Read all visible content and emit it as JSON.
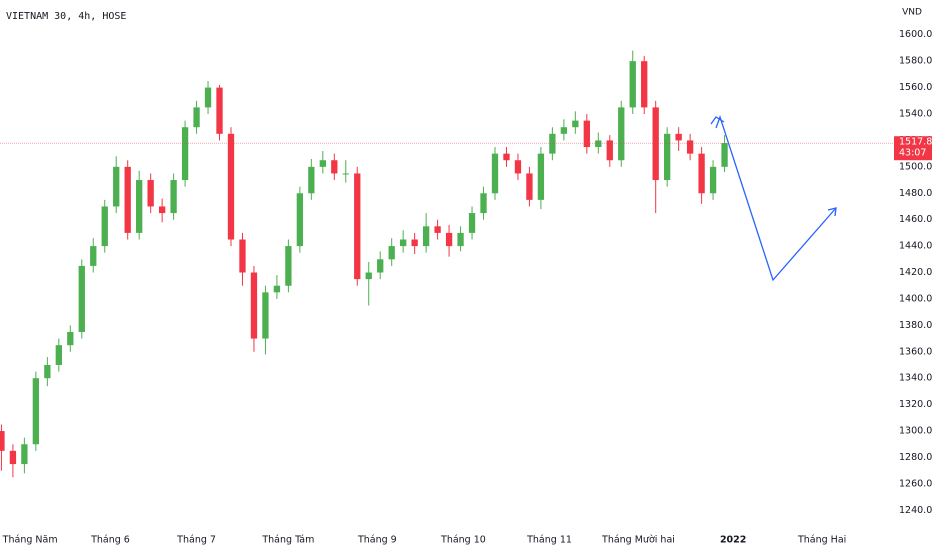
{
  "chart_data": {
    "type": "candlestick",
    "title": "VIETNAM 30, 4h, HOSE",
    "currency": "VND",
    "x": [
      -10,
      -6,
      -2,
      2,
      6,
      10,
      14,
      18,
      22,
      26,
      30,
      34,
      38,
      42,
      46,
      50,
      54,
      58,
      62,
      66,
      70,
      74,
      78,
      82,
      86,
      90,
      94,
      98,
      102,
      106,
      110,
      114,
      118,
      122,
      126,
      130,
      134,
      138,
      142,
      146,
      150,
      154,
      158,
      162,
      166,
      170,
      174,
      178,
      182,
      186,
      190,
      194,
      198,
      202,
      206,
      210,
      214,
      218,
      222,
      226,
      230,
      234,
      238,
      242
    ],
    "open": [
      1300,
      1285,
      1275,
      1290,
      1340,
      1350,
      1365,
      1375,
      1425,
      1440,
      1470,
      1500,
      1450,
      1490,
      1470,
      1465,
      1490,
      1530,
      1545,
      1560,
      1525,
      1445,
      1420,
      1370,
      1405,
      1410,
      1440,
      1480,
      1500,
      1505,
      1495,
      1495,
      1415,
      1420,
      1430,
      1440,
      1445,
      1440,
      1455,
      1450,
      1440,
      1450,
      1465,
      1480,
      1510,
      1505,
      1495,
      1475,
      1510,
      1525,
      1530,
      1535,
      1515,
      1520,
      1505,
      1545,
      1580,
      1545,
      1490,
      1525,
      1520,
      1510,
      1480,
      1500
    ],
    "high": [
      1305,
      1290,
      1295,
      1345,
      1356,
      1370,
      1380,
      1430,
      1446,
      1475,
      1508,
      1505,
      1497,
      1495,
      1476,
      1495,
      1535,
      1550,
      1565,
      1562,
      1530,
      1450,
      1425,
      1410,
      1418,
      1445,
      1485,
      1506,
      1512,
      1510,
      1505,
      1500,
      1428,
      1436,
      1446,
      1452,
      1450,
      1465,
      1460,
      1456,
      1455,
      1470,
      1485,
      1515,
      1515,
      1510,
      1500,
      1515,
      1530,
      1536,
      1542,
      1540,
      1526,
      1524,
      1550,
      1588,
      1584,
      1550,
      1530,
      1530,
      1525,
      1515,
      1505,
      1524
    ],
    "low": [
      1270,
      1265,
      1268,
      1285,
      1334,
      1345,
      1360,
      1370,
      1420,
      1435,
      1465,
      1445,
      1445,
      1465,
      1458,
      1460,
      1485,
      1525,
      1540,
      1520,
      1440,
      1410,
      1360,
      1358,
      1400,
      1405,
      1435,
      1475,
      1495,
      1490,
      1488,
      1410,
      1395,
      1415,
      1425,
      1435,
      1434,
      1435,
      1445,
      1432,
      1436,
      1445,
      1460,
      1475,
      1500,
      1490,
      1470,
      1468,
      1505,
      1520,
      1525,
      1510,
      1510,
      1500,
      1500,
      1540,
      1540,
      1465,
      1485,
      1512,
      1505,
      1472,
      1475,
      1496
    ],
    "close": [
      1285,
      1275,
      1290,
      1340,
      1350,
      1365,
      1375,
      1425,
      1440,
      1470,
      1500,
      1450,
      1490,
      1470,
      1465,
      1490,
      1530,
      1545,
      1560,
      1525,
      1445,
      1420,
      1370,
      1405,
      1410,
      1440,
      1480,
      1500,
      1505,
      1495,
      1495,
      1415,
      1420,
      1430,
      1440,
      1445,
      1440,
      1455,
      1450,
      1440,
      1450,
      1465,
      1480,
      1510,
      1505,
      1495,
      1475,
      1510,
      1525,
      1530,
      1535,
      1515,
      1520,
      1505,
      1545,
      1580,
      1545,
      1490,
      1525,
      1520,
      1510,
      1480,
      1500,
      1518
    ],
    "up_color": "#4caf50",
    "down_color": "#f23645",
    "last_price": 1517.89,
    "countdown": "43:07",
    "xlim": [
      -10.5,
      300.7
    ],
    "xticks": [
      {
        "value": 0,
        "label": "Tháng Năm"
      },
      {
        "value": 28,
        "label": "Tháng 6"
      },
      {
        "value": 58,
        "label": "Tháng 7"
      },
      {
        "value": 90,
        "label": "Tháng Tám"
      },
      {
        "value": 121,
        "label": "Tháng 9"
      },
      {
        "value": 151,
        "label": "Tháng 10"
      },
      {
        "value": 181,
        "label": "Tháng 11"
      },
      {
        "value": 212,
        "label": "Tháng Mười hai"
      },
      {
        "value": 245,
        "label": "2022"
      },
      {
        "value": 276,
        "label": "Tháng Hai"
      }
    ],
    "ylim": [
      1226.6,
      1626.3
    ],
    "yticks": [
      {
        "value": 1240,
        "label": "1240.00"
      },
      {
        "value": 1260,
        "label": "1260.00"
      },
      {
        "value": 1280,
        "label": "1280.00"
      },
      {
        "value": 1300,
        "label": "1300.00"
      },
      {
        "value": 1320,
        "label": "1320.00"
      },
      {
        "value": 1340,
        "label": "1340.00"
      },
      {
        "value": 1360,
        "label": "1360.00"
      },
      {
        "value": 1380,
        "label": "1380.00"
      },
      {
        "value": 1400,
        "label": "1400.00"
      },
      {
        "value": 1420,
        "label": "1420.00"
      },
      {
        "value": 1440,
        "label": "1440.00"
      },
      {
        "value": 1460,
        "label": "1460.00"
      },
      {
        "value": 1480,
        "label": "1480.00"
      },
      {
        "value": 1500,
        "label": "1500.00"
      },
      {
        "value": 1520,
        "label": "1520.00"
      },
      {
        "value": 1540,
        "label": "1540.00"
      },
      {
        "value": 1560,
        "label": "1560.00"
      },
      {
        "value": 1580,
        "label": "1580.00"
      },
      {
        "value": 1600,
        "label": "1600.00"
      }
    ],
    "grid": false
  }
}
